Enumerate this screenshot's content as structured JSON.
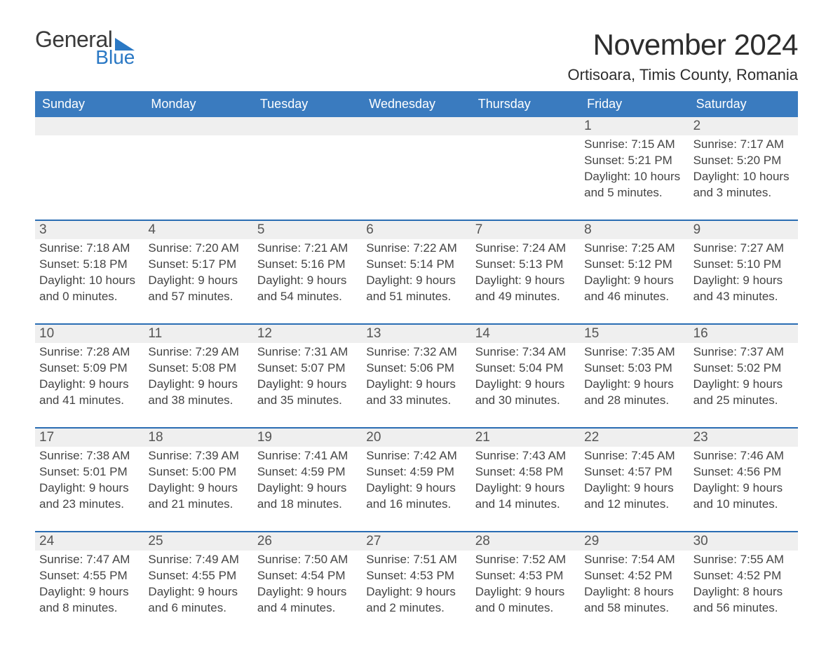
{
  "logo": {
    "word1": "General",
    "word2": "Blue"
  },
  "title": "November 2024",
  "location": "Ortisoara, Timis County, Romania",
  "day_headers": [
    "Sunday",
    "Monday",
    "Tuesday",
    "Wednesday",
    "Thursday",
    "Friday",
    "Saturday"
  ],
  "styling": {
    "header_bg": "#3a7bbf",
    "row_separator": "#2a6db3",
    "daynum_bg": "#efefef",
    "logo_blue": "#2a78c4",
    "page_bg": "#ffffff",
    "title_fontsize_pt": 32,
    "location_fontsize_pt": 16,
    "header_fontsize_pt": 14,
    "daynum_fontsize_pt": 14,
    "body_fontsize_pt": 13,
    "grid_columns": 7,
    "weeks": 5
  },
  "days": [
    {
      "date": 1,
      "sunrise": "7:15 AM",
      "sunset": "5:21 PM",
      "daylight_l1": "Daylight: 10 hours",
      "daylight_l2": "and 5 minutes."
    },
    {
      "date": 2,
      "sunrise": "7:17 AM",
      "sunset": "5:20 PM",
      "daylight_l1": "Daylight: 10 hours",
      "daylight_l2": "and 3 minutes."
    },
    {
      "date": 3,
      "sunrise": "7:18 AM",
      "sunset": "5:18 PM",
      "daylight_l1": "Daylight: 10 hours",
      "daylight_l2": "and 0 minutes."
    },
    {
      "date": 4,
      "sunrise": "7:20 AM",
      "sunset": "5:17 PM",
      "daylight_l1": "Daylight: 9 hours",
      "daylight_l2": "and 57 minutes."
    },
    {
      "date": 5,
      "sunrise": "7:21 AM",
      "sunset": "5:16 PM",
      "daylight_l1": "Daylight: 9 hours",
      "daylight_l2": "and 54 minutes."
    },
    {
      "date": 6,
      "sunrise": "7:22 AM",
      "sunset": "5:14 PM",
      "daylight_l1": "Daylight: 9 hours",
      "daylight_l2": "and 51 minutes."
    },
    {
      "date": 7,
      "sunrise": "7:24 AM",
      "sunset": "5:13 PM",
      "daylight_l1": "Daylight: 9 hours",
      "daylight_l2": "and 49 minutes."
    },
    {
      "date": 8,
      "sunrise": "7:25 AM",
      "sunset": "5:12 PM",
      "daylight_l1": "Daylight: 9 hours",
      "daylight_l2": "and 46 minutes."
    },
    {
      "date": 9,
      "sunrise": "7:27 AM",
      "sunset": "5:10 PM",
      "daylight_l1": "Daylight: 9 hours",
      "daylight_l2": "and 43 minutes."
    },
    {
      "date": 10,
      "sunrise": "7:28 AM",
      "sunset": "5:09 PM",
      "daylight_l1": "Daylight: 9 hours",
      "daylight_l2": "and 41 minutes."
    },
    {
      "date": 11,
      "sunrise": "7:29 AM",
      "sunset": "5:08 PM",
      "daylight_l1": "Daylight: 9 hours",
      "daylight_l2": "and 38 minutes."
    },
    {
      "date": 12,
      "sunrise": "7:31 AM",
      "sunset": "5:07 PM",
      "daylight_l1": "Daylight: 9 hours",
      "daylight_l2": "and 35 minutes."
    },
    {
      "date": 13,
      "sunrise": "7:32 AM",
      "sunset": "5:06 PM",
      "daylight_l1": "Daylight: 9 hours",
      "daylight_l2": "and 33 minutes."
    },
    {
      "date": 14,
      "sunrise": "7:34 AM",
      "sunset": "5:04 PM",
      "daylight_l1": "Daylight: 9 hours",
      "daylight_l2": "and 30 minutes."
    },
    {
      "date": 15,
      "sunrise": "7:35 AM",
      "sunset": "5:03 PM",
      "daylight_l1": "Daylight: 9 hours",
      "daylight_l2": "and 28 minutes."
    },
    {
      "date": 16,
      "sunrise": "7:37 AM",
      "sunset": "5:02 PM",
      "daylight_l1": "Daylight: 9 hours",
      "daylight_l2": "and 25 minutes."
    },
    {
      "date": 17,
      "sunrise": "7:38 AM",
      "sunset": "5:01 PM",
      "daylight_l1": "Daylight: 9 hours",
      "daylight_l2": "and 23 minutes."
    },
    {
      "date": 18,
      "sunrise": "7:39 AM",
      "sunset": "5:00 PM",
      "daylight_l1": "Daylight: 9 hours",
      "daylight_l2": "and 21 minutes."
    },
    {
      "date": 19,
      "sunrise": "7:41 AM",
      "sunset": "4:59 PM",
      "daylight_l1": "Daylight: 9 hours",
      "daylight_l2": "and 18 minutes."
    },
    {
      "date": 20,
      "sunrise": "7:42 AM",
      "sunset": "4:59 PM",
      "daylight_l1": "Daylight: 9 hours",
      "daylight_l2": "and 16 minutes."
    },
    {
      "date": 21,
      "sunrise": "7:43 AM",
      "sunset": "4:58 PM",
      "daylight_l1": "Daylight: 9 hours",
      "daylight_l2": "and 14 minutes."
    },
    {
      "date": 22,
      "sunrise": "7:45 AM",
      "sunset": "4:57 PM",
      "daylight_l1": "Daylight: 9 hours",
      "daylight_l2": "and 12 minutes."
    },
    {
      "date": 23,
      "sunrise": "7:46 AM",
      "sunset": "4:56 PM",
      "daylight_l1": "Daylight: 9 hours",
      "daylight_l2": "and 10 minutes."
    },
    {
      "date": 24,
      "sunrise": "7:47 AM",
      "sunset": "4:55 PM",
      "daylight_l1": "Daylight: 9 hours",
      "daylight_l2": "and 8 minutes."
    },
    {
      "date": 25,
      "sunrise": "7:49 AM",
      "sunset": "4:55 PM",
      "daylight_l1": "Daylight: 9 hours",
      "daylight_l2": "and 6 minutes."
    },
    {
      "date": 26,
      "sunrise": "7:50 AM",
      "sunset": "4:54 PM",
      "daylight_l1": "Daylight: 9 hours",
      "daylight_l2": "and 4 minutes."
    },
    {
      "date": 27,
      "sunrise": "7:51 AM",
      "sunset": "4:53 PM",
      "daylight_l1": "Daylight: 9 hours",
      "daylight_l2": "and 2 minutes."
    },
    {
      "date": 28,
      "sunrise": "7:52 AM",
      "sunset": "4:53 PM",
      "daylight_l1": "Daylight: 9 hours",
      "daylight_l2": "and 0 minutes."
    },
    {
      "date": 29,
      "sunrise": "7:54 AM",
      "sunset": "4:52 PM",
      "daylight_l1": "Daylight: 8 hours",
      "daylight_l2": "and 58 minutes."
    },
    {
      "date": 30,
      "sunrise": "7:55 AM",
      "sunset": "4:52 PM",
      "daylight_l1": "Daylight: 8 hours",
      "daylight_l2": "and 56 minutes."
    }
  ],
  "labels": {
    "sunrise_prefix": "Sunrise: ",
    "sunset_prefix": "Sunset: "
  },
  "first_day_column_index": 5
}
